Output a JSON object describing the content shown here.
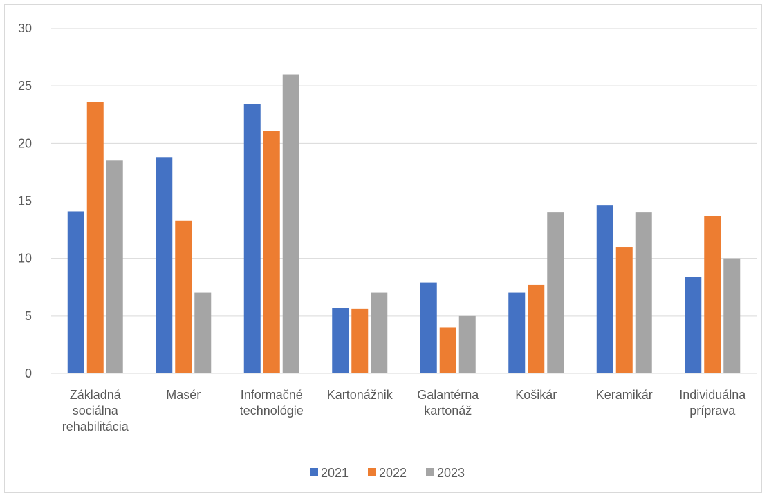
{
  "chart_data": {
    "type": "bar",
    "title": "",
    "xlabel": "",
    "ylabel": "",
    "ylim": [
      0,
      30
    ],
    "yticks": [
      0,
      5,
      10,
      15,
      20,
      25,
      30
    ],
    "grid": true,
    "legend_position": "bottom",
    "categories": [
      [
        "Základná",
        "sociálna",
        "rehabilitácia"
      ],
      [
        "Masér"
      ],
      [
        "Informačné",
        "technológie"
      ],
      [
        "Kartonážnik"
      ],
      [
        "Galantérna",
        "kartonáž"
      ],
      [
        "Košikár"
      ],
      [
        "Keramikár"
      ],
      [
        "Individuálna",
        "príprava"
      ]
    ],
    "series": [
      {
        "name": "2021",
        "color": "#4472c4",
        "values": [
          14.1,
          18.8,
          23.4,
          5.7,
          7.9,
          7.0,
          14.6,
          8.4
        ]
      },
      {
        "name": "2022",
        "color": "#ed7d31",
        "values": [
          23.6,
          13.3,
          21.1,
          5.6,
          4.0,
          7.7,
          11.0,
          13.7
        ]
      },
      {
        "name": "2023",
        "color": "#a5a5a5",
        "values": [
          18.5,
          7.0,
          26.0,
          7.0,
          5.0,
          14.0,
          14.0,
          10.0
        ]
      }
    ]
  }
}
